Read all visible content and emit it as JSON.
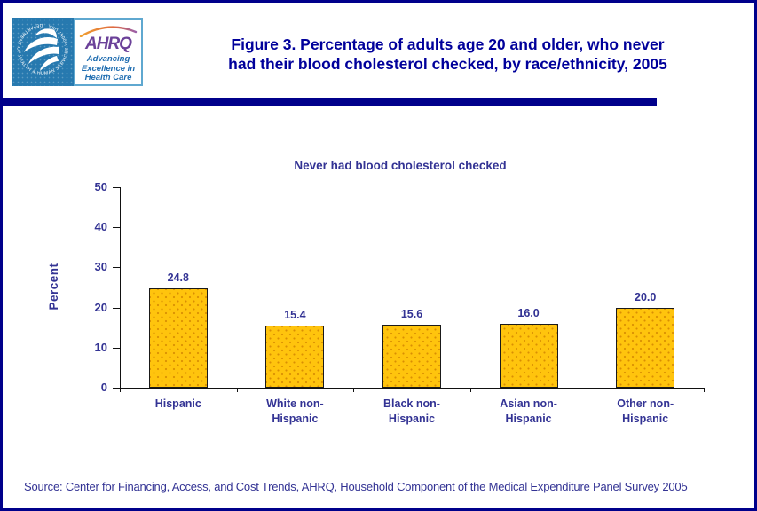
{
  "header": {
    "title_line1": "Figure 3. Percentage of adults age 20 and older, who never",
    "title_line2": "had their blood cholesterol checked, by race/ethnicity, 2005"
  },
  "logos": {
    "hhs_seal_text": "DEPARTMENT OF HEALTH & HUMAN SERVICES · USA",
    "ahrq_acronym": "AHRQ",
    "ahrq_tagline_line1": "Advancing",
    "ahrq_tagline_line2": "Excellence in",
    "ahrq_tagline_line3": "Health Care"
  },
  "chart_data": {
    "type": "bar",
    "title": "Never had blood cholesterol checked",
    "xlabel": "",
    "ylabel": "Percent",
    "categories": [
      "Hispanic",
      "White non-Hispanic",
      "Black non-Hispanic",
      "Asian non-Hispanic",
      "Other non-Hispanic"
    ],
    "values": [
      24.8,
      15.4,
      15.6,
      16.0,
      20.0
    ],
    "ylim": [
      0,
      50
    ],
    "yticks": [
      0,
      10,
      20,
      30,
      40,
      50
    ],
    "grid": false,
    "legend": "none",
    "bar_color": "#FFC40D",
    "bar_border_color": "#1A1A1A",
    "label_color": "#333394"
  },
  "source": {
    "text": "Source: Center for Financing, Access, and Cost Trends, AHRQ, Household Component of the Medical Expenditure Panel Survey 2005"
  },
  "colors": {
    "accent_navy": "#00008B",
    "title_text": "#00009B",
    "chart_text": "#333394",
    "hhs_logo_blue": "#2779AF",
    "ahrq_purple": "#6B4199",
    "ahrq_tagline_blue": "#1E6CB0"
  }
}
